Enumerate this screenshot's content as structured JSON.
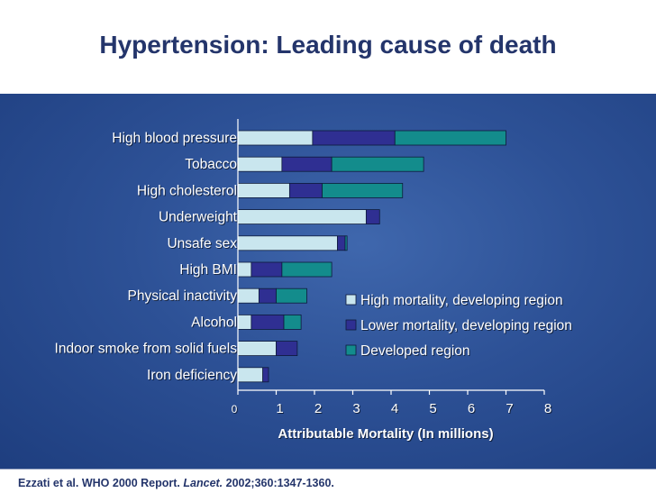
{
  "title": "Hypertension: Leading cause of death",
  "citation": {
    "prefix": "Ezzati et al. WHO 2000 Report. ",
    "journal": "Lancet.",
    "suffix": " 2002;360:1347-1360."
  },
  "colors": {
    "high_mortality": "#c9e6ee",
    "lower_mortality": "#2f2f92",
    "developed": "#138c8c"
  },
  "chart_data": {
    "type": "bar",
    "orientation": "horizontal",
    "stacked": true,
    "categories": [
      "High blood pressure",
      "Tobacco",
      "High cholesterol",
      "Underweight",
      "Unsafe sex",
      "High BMI",
      "Physical inactivity",
      "Alcohol",
      "Indoor smoke from solid fuels",
      "Iron deficiency"
    ],
    "series": [
      {
        "name": "High mortality, developing region",
        "color": "#c9e6ee",
        "values": [
          1.95,
          1.15,
          1.35,
          3.35,
          2.6,
          0.35,
          0.55,
          0.35,
          1.0,
          0.65
        ]
      },
      {
        "name": "Lower mortality, developing region",
        "color": "#2f2f92",
        "values": [
          2.15,
          1.3,
          0.85,
          0.35,
          0.2,
          0.8,
          0.45,
          0.85,
          0.55,
          0.15
        ]
      },
      {
        "name": "Developed region",
        "color": "#138c8c",
        "values": [
          2.9,
          2.4,
          2.1,
          0.0,
          0.05,
          1.3,
          0.8,
          0.45,
          0.0,
          0.0
        ]
      }
    ],
    "xticks": [
      "0",
      "1",
      "2",
      "3",
      "4",
      "5",
      "6",
      "7",
      "8"
    ],
    "xlim": [
      0,
      8
    ],
    "xlabel": "Attributable Mortality (In millions)",
    "legend_position": "right-middle",
    "grid": false
  }
}
